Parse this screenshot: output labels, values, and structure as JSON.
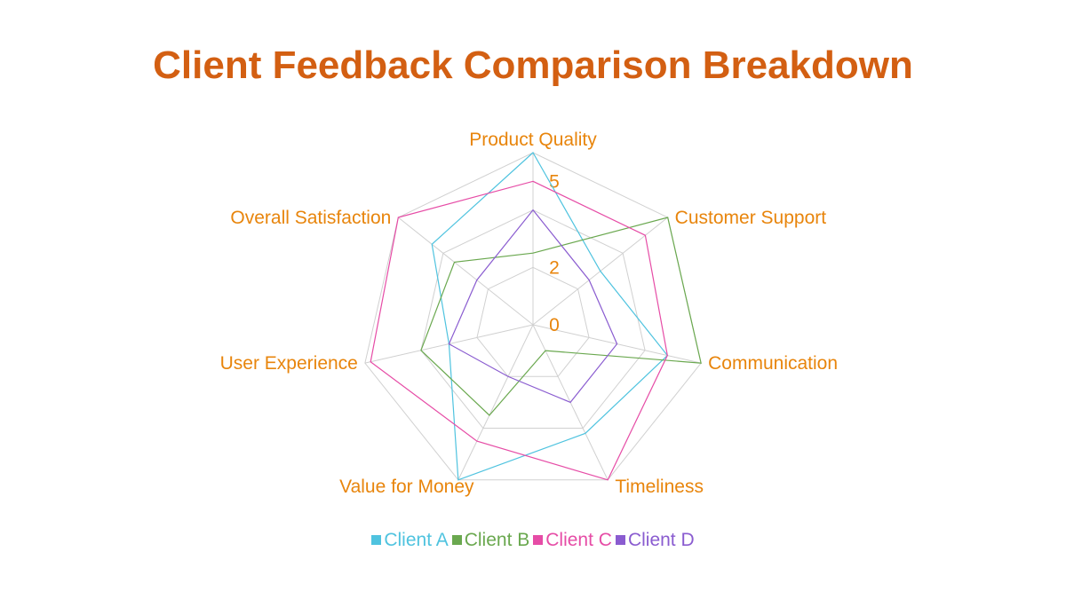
{
  "chart_data": {
    "type": "radar",
    "title": "Client Feedback Comparison Breakdown",
    "categories": [
      "Product Quality",
      "Customer Support",
      "Communication",
      "Timeliness",
      "Value for Money",
      "User Experience",
      "Overall Satisfaction"
    ],
    "rlim": [
      0,
      6
    ],
    "tick_values": [
      0,
      2,
      5
    ],
    "tick_labels": [
      "0",
      "2",
      "5"
    ],
    "series": [
      {
        "name": "Client A",
        "color": "#4fc3df",
        "values": [
          6,
          3,
          4.8,
          4.2,
          6,
          3,
          4.5
        ]
      },
      {
        "name": "Client B",
        "color": "#6aa84f",
        "values": [
          2.5,
          6,
          6,
          1,
          3.5,
          4,
          3.5
        ]
      },
      {
        "name": "Client C",
        "color": "#e64ca6",
        "values": [
          5,
          5,
          4.8,
          6,
          4.5,
          5.8,
          6
        ]
      },
      {
        "name": "Client D",
        "color": "#8a5cd0",
        "values": [
          4,
          2.5,
          3,
          3,
          2,
          3,
          2.5
        ]
      }
    ],
    "grid": true,
    "legend_position": "bottom"
  }
}
